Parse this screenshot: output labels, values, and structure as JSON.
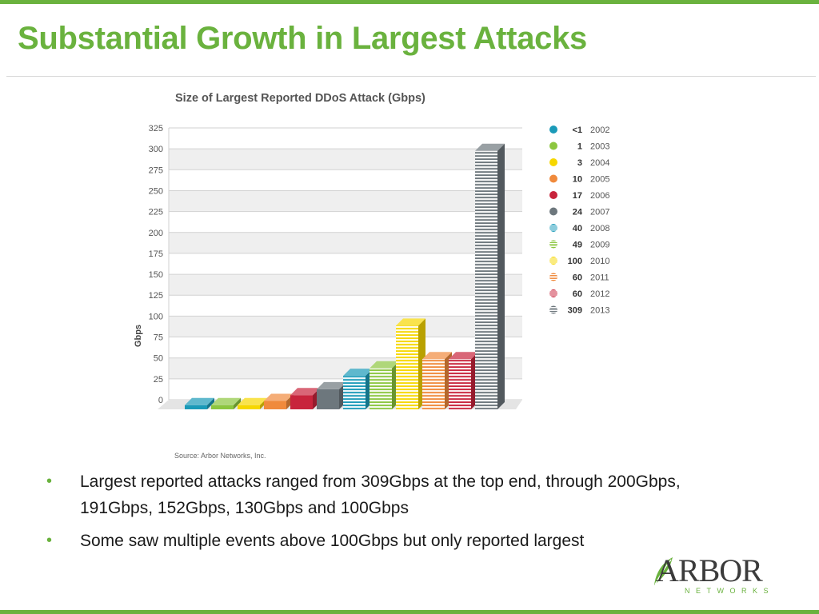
{
  "slide": {
    "title": "Substantial Growth in Largest Attacks",
    "bullets": [
      "Largest reported attacks ranged from 309Gbps at the top end, through 200Gbps, 191Gbps, 152Gbps, 130Gbps and 100Gbps",
      "Some saw multiple events above 100Gbps but only reported largest"
    ],
    "bullet_symbol": "•",
    "logo": {
      "wordmark": "ARBOR",
      "subtext": "NETWORKS"
    }
  },
  "chart_data": {
    "type": "bar",
    "title": "Size of Largest Reported DDoS Attack (Gbps)",
    "xlabel": "",
    "ylabel": "Gbps",
    "ylim": [
      0,
      325
    ],
    "yticks": [
      0,
      25,
      50,
      75,
      100,
      125,
      150,
      175,
      200,
      225,
      250,
      275,
      300,
      325
    ],
    "categories": [
      "2002",
      "2003",
      "2004",
      "2005",
      "2006",
      "2007",
      "2008",
      "2009",
      "2010",
      "2011",
      "2012",
      "2013"
    ],
    "values": [
      0.4,
      1,
      3,
      10,
      17,
      24,
      40,
      49,
      100,
      60,
      60,
      309
    ],
    "value_labels": [
      "<1",
      "1",
      "3",
      "10",
      "17",
      "24",
      "40",
      "49",
      "100",
      "60",
      "60",
      "309"
    ],
    "colors": [
      "#1a9ab8",
      "#8cc63f",
      "#f6d700",
      "#f08a3c",
      "#c8243c",
      "#6d777d",
      "#1a9ab8",
      "#8cc63f",
      "#f6d700",
      "#f08a3c",
      "#c8243c",
      "#6d777d"
    ],
    "striped": [
      false,
      false,
      false,
      false,
      false,
      false,
      true,
      true,
      true,
      true,
      true,
      true
    ],
    "legend": {
      "position": "right",
      "entries": [
        {
          "value": "<1",
          "year": "2002"
        },
        {
          "value": "1",
          "year": "2003"
        },
        {
          "value": "3",
          "year": "2004"
        },
        {
          "value": "10",
          "year": "2005"
        },
        {
          "value": "17",
          "year": "2006"
        },
        {
          "value": "24",
          "year": "2007"
        },
        {
          "value": "40",
          "year": "2008"
        },
        {
          "value": "49",
          "year": "2009"
        },
        {
          "value": "100",
          "year": "2010"
        },
        {
          "value": "60",
          "year": "2011"
        },
        {
          "value": "60",
          "year": "2012"
        },
        {
          "value": "309",
          "year": "2013"
        }
      ]
    },
    "grid": true,
    "source": "Source: Arbor Networks, Inc."
  },
  "colors": {
    "accent": "#6ab23e",
    "text": "#1a1a1a"
  }
}
